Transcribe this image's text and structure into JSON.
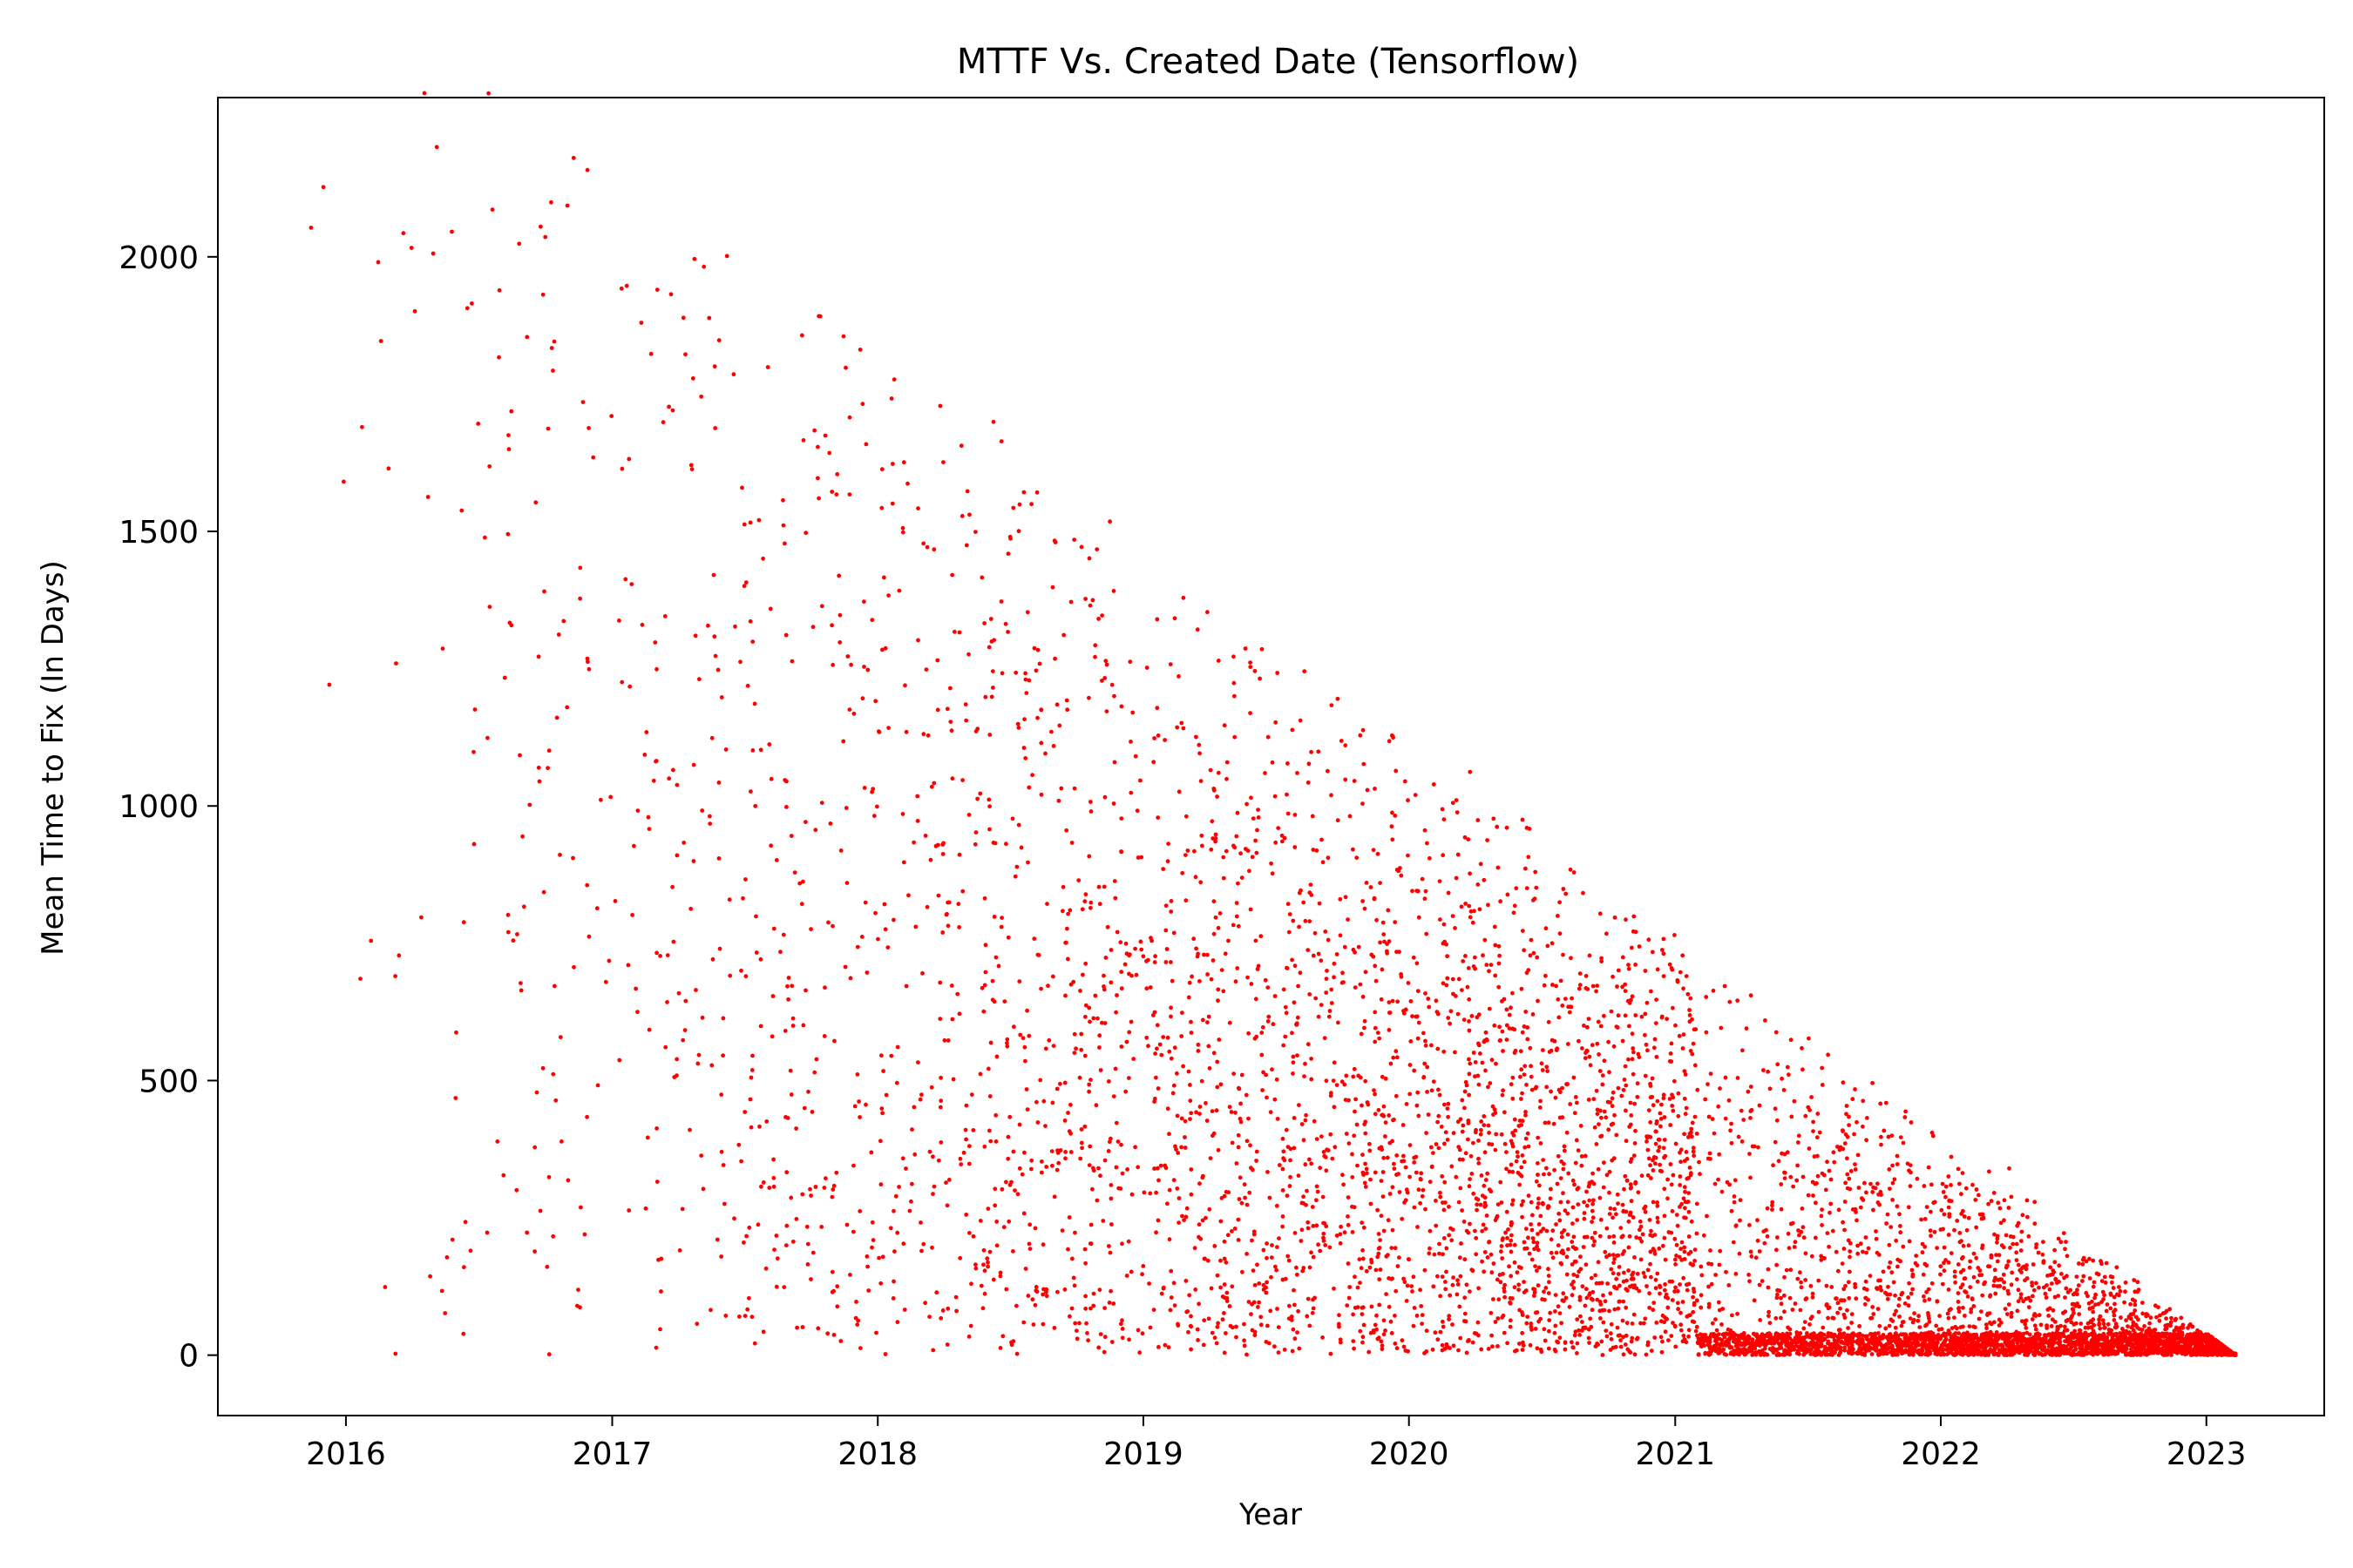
{
  "chart_data": {
    "type": "scatter",
    "title": "MTTF Vs. Created Date (Tensorflow)",
    "xlabel": "Year",
    "ylabel": "Mean Time to Fix (In Days)",
    "x_ticks": [
      "2016",
      "2017",
      "2018",
      "2019",
      "2020",
      "2021",
      "2022",
      "2023"
    ],
    "y_ticks": [
      "0",
      "500",
      "1000",
      "1500",
      "2000"
    ],
    "xlim": [
      "2015-07-09",
      "2023-06-12"
    ],
    "ylim": [
      -110,
      2290
    ],
    "grid": false,
    "legend": "none",
    "marker_color": "#ff0000",
    "data_end_date": "2023-02-10",
    "series": [
      {
        "points": [
          [
            "2015-11-14",
            2053
          ],
          [
            "2015-12-01",
            2127
          ],
          [
            "2016-03-20",
            2043
          ],
          [
            "2016-04-30",
            2006
          ],
          [
            "2016-06-22",
            1915
          ],
          [
            "2016-07-30",
            1939
          ],
          [
            "2016-09-06",
            1854
          ],
          [
            "2016-09-28",
            1931
          ],
          [
            "2016-10-01",
            2036
          ],
          [
            "2016-10-05",
            1687
          ],
          [
            "2016-10-10",
            1834
          ],
          [
            "2016-11-09",
            2180
          ],
          [
            "2016-11-28",
            2158
          ],
          [
            "2016-12-31",
            1710
          ],
          [
            "2017-01-21",
            1947
          ],
          [
            "2017-02-10",
            1880
          ],
          [
            "2017-03-04",
            1940
          ],
          [
            "2017-03-20",
            1727
          ],
          [
            "2017-04-09",
            1889
          ],
          [
            "2017-04-24",
            1996
          ],
          [
            "2017-05-07",
            1982
          ],
          [
            "2017-05-28",
            1848
          ],
          [
            "2017-06-17",
            1786
          ],
          [
            "2017-07-10",
            1516
          ],
          [
            "2017-08-03",
            1799
          ],
          [
            "2017-08-26",
            1478
          ],
          [
            "2017-09-19",
            1857
          ],
          [
            "2017-10-12",
            1892
          ],
          [
            "2017-10-30",
            1329
          ],
          [
            "2017-11-18",
            1798
          ],
          [
            "2017-12-08",
            1831
          ],
          [
            "2017-12-29",
            1191
          ],
          [
            "2018-01-20",
            1742
          ],
          [
            "2018-02-11",
            1587
          ],
          [
            "2018-03-05",
            1131
          ],
          [
            "2018-04-01",
            1626
          ],
          [
            "2018-04-26",
            1656
          ],
          [
            "2018-05-18",
            1013
          ],
          [
            "2018-06-20",
            1664
          ],
          [
            "2018-07-15",
            1549
          ],
          [
            "2018-08-08",
            1571
          ],
          [
            "2018-09-01",
            1483
          ],
          [
            "2018-09-25",
            933
          ],
          [
            "2018-10-20",
            1365
          ],
          [
            "2018-11-16",
            1518
          ],
          [
            "2018-12-15",
            1024
          ],
          [
            "2019-01-20",
            1340
          ],
          [
            "2019-02-25",
            1379
          ],
          [
            "2019-03-30",
            1353
          ],
          [
            "2019-05-05",
            1272
          ],
          [
            "2019-06-10",
            1232
          ],
          [
            "2019-07-15",
            580
          ],
          [
            "2019-08-20",
            838
          ],
          [
            "2019-09-25",
            1195
          ],
          [
            "2019-10-30",
            1138
          ],
          [
            "2019-12-05",
            1118
          ],
          [
            "2020-01-10",
            1020
          ],
          [
            "2020-02-15",
            416
          ],
          [
            "2020-03-25",
            1062
          ],
          [
            "2020-05-01",
            962
          ],
          [
            "2020-06-05",
            975
          ],
          [
            "2020-07-10",
            268
          ],
          [
            "2020-08-15",
            879
          ],
          [
            "2020-09-20",
            804
          ],
          [
            "2020-10-25",
            793
          ],
          [
            "2020-12-01",
            734
          ],
          [
            "2021-01-05",
            84
          ],
          [
            "2021-02-10",
            34
          ],
          [
            "2021-03-10",
            672
          ],
          [
            "2021-04-15",
            655
          ],
          [
            "2021-05-20",
            588
          ],
          [
            "2021-06-25",
            520
          ],
          [
            "2021-07-30",
            547
          ],
          [
            "2021-09-05",
            484
          ],
          [
            "2021-10-10",
            458
          ],
          [
            "2021-11-15",
            8
          ],
          [
            "2021-12-20",
            405
          ],
          [
            "2022-01-25",
            339
          ],
          [
            "2022-03-01",
            6
          ],
          [
            "2022-04-05",
            340
          ],
          [
            "2022-05-10",
            279
          ],
          [
            "2022-06-15",
            206
          ],
          [
            "2022-07-20",
            171
          ],
          [
            "2022-08-25",
            142
          ],
          [
            "2022-09-30",
            119
          ],
          [
            "2022-11-05",
            77
          ],
          [
            "2022-12-10",
            56
          ],
          [
            "2023-01-15",
            26
          ],
          [
            "2023-02-10",
            3
          ]
        ]
      }
    ]
  }
}
